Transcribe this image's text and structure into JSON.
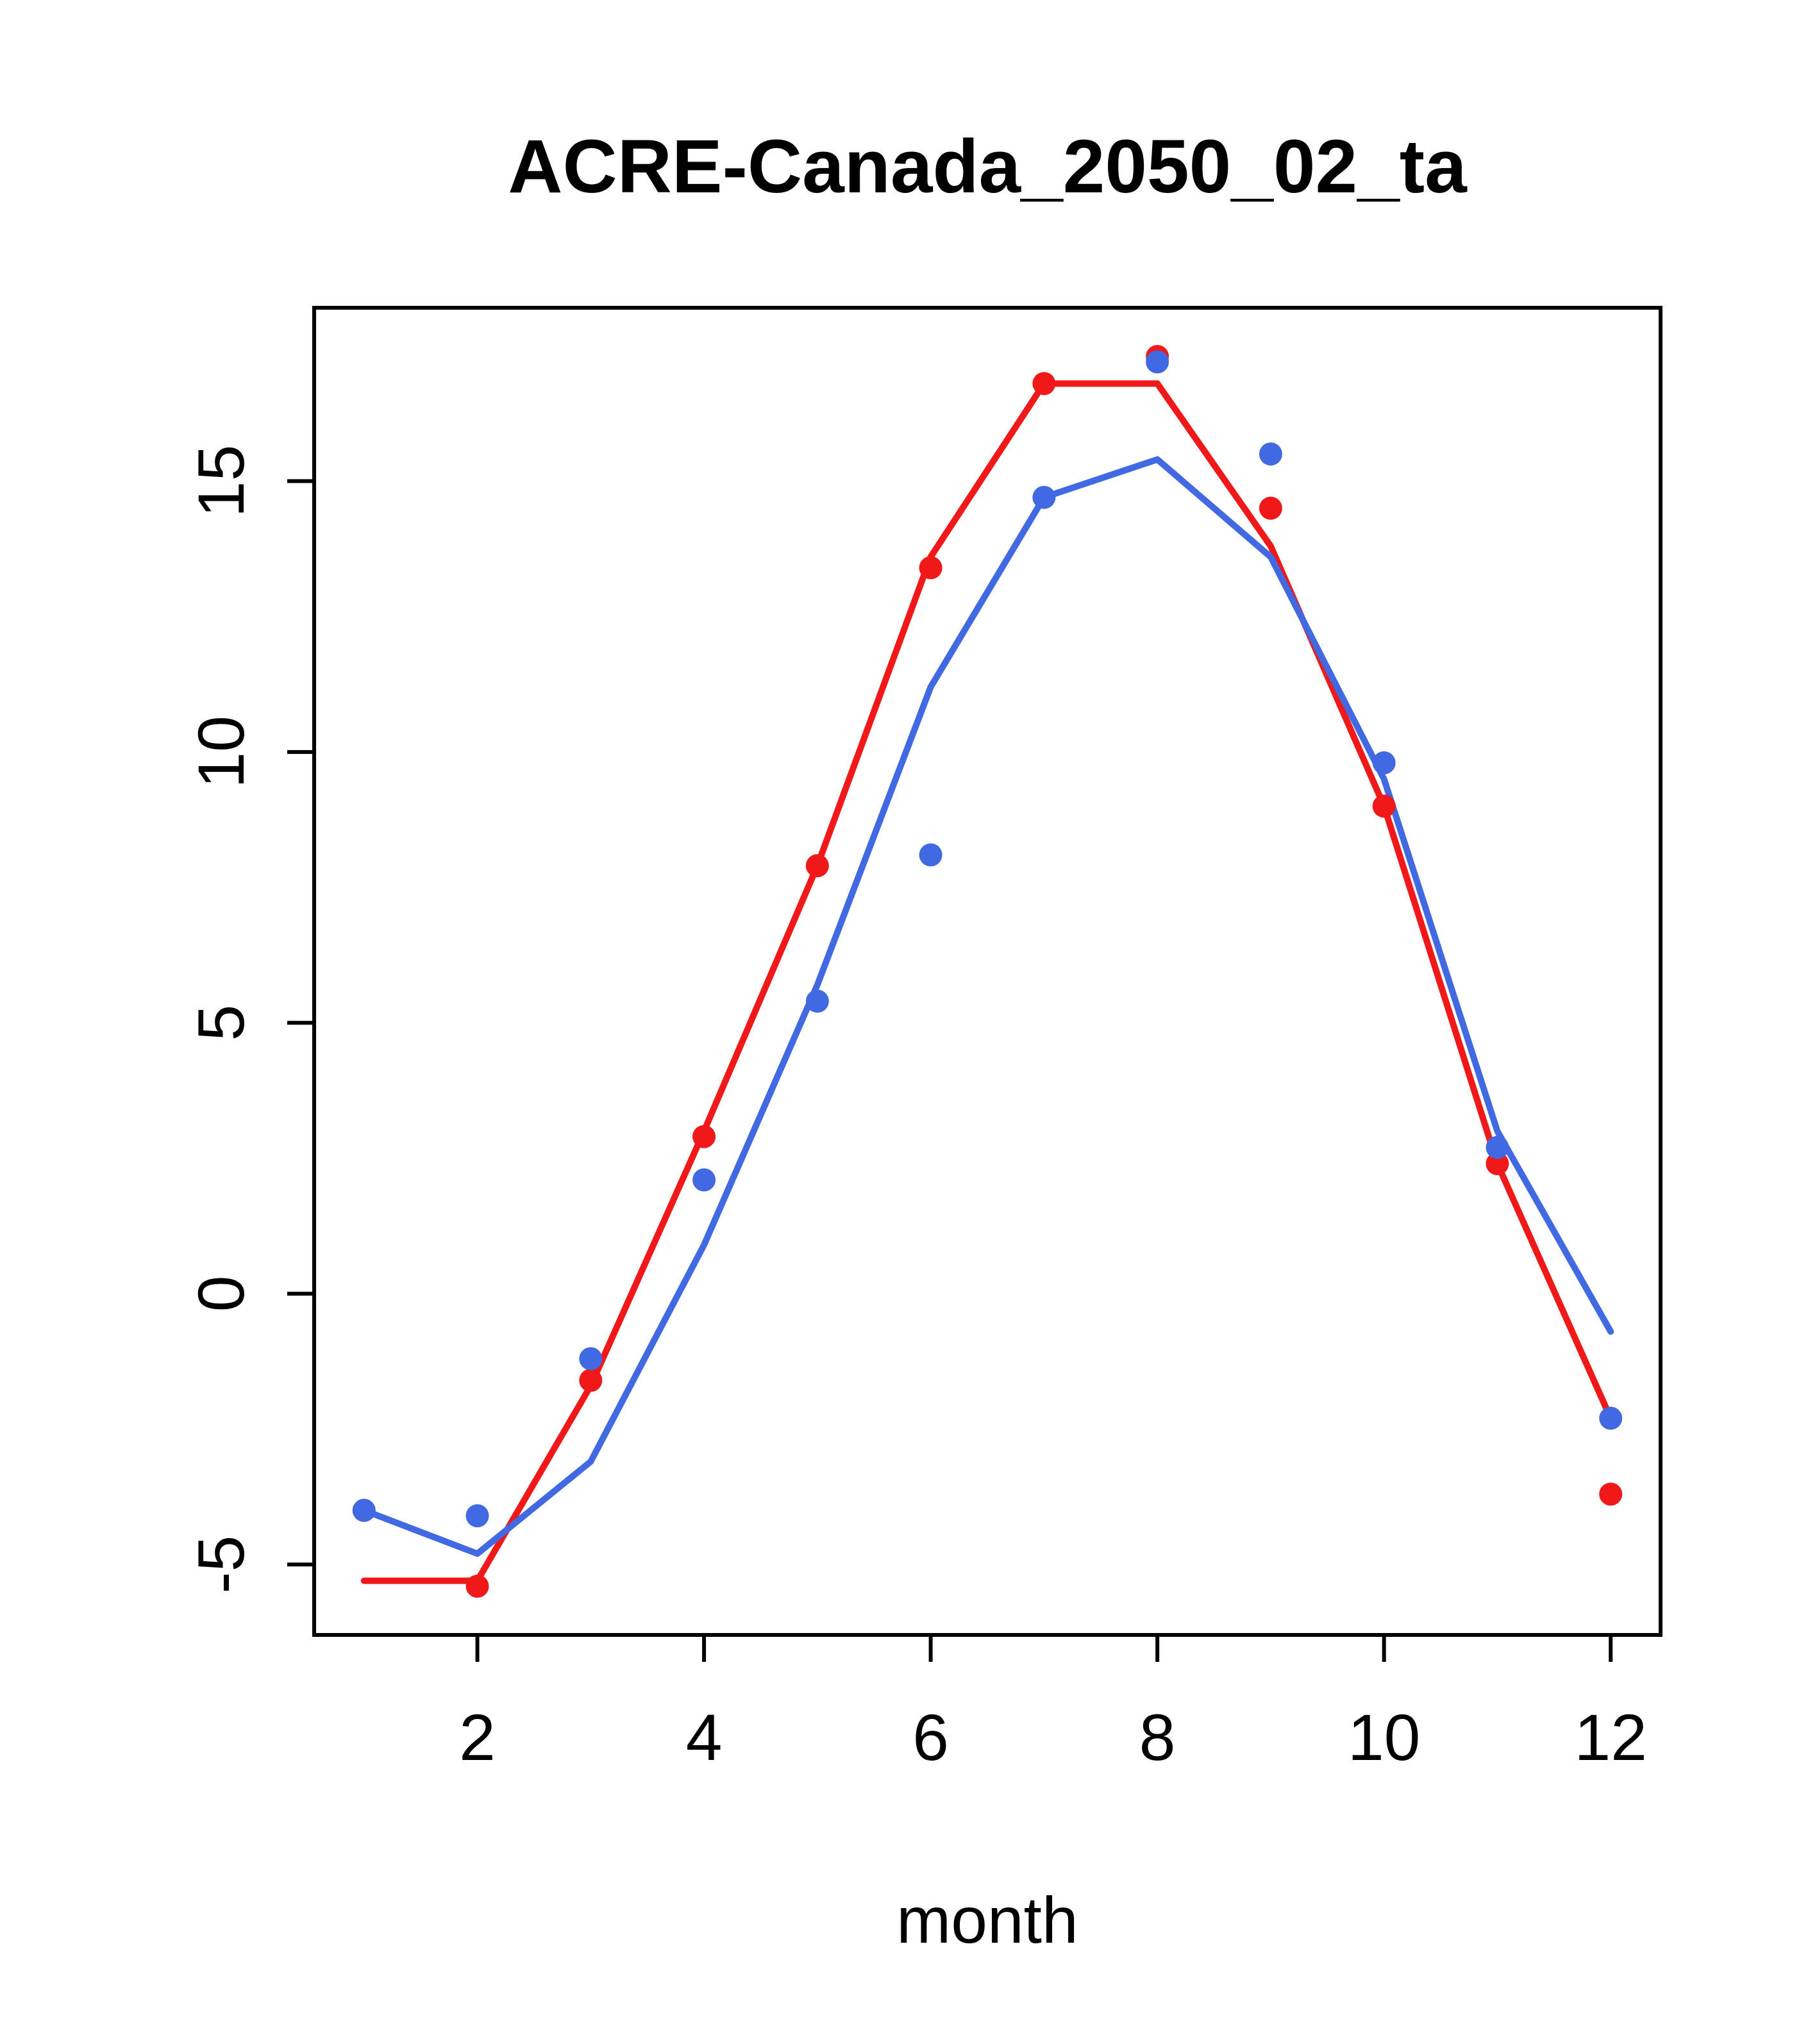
{
  "chart_data": {
    "type": "line",
    "title": "ACRE-Canada_2050_02_ta",
    "xlabel": "month",
    "ylabel": "",
    "x": [
      1,
      2,
      3,
      4,
      5,
      6,
      7,
      8,
      9,
      10,
      11,
      12
    ],
    "xlim": [
      0.56,
      12.44
    ],
    "ylim": [
      -6.3,
      18.2
    ],
    "xticks": [
      2,
      4,
      6,
      8,
      10,
      12
    ],
    "yticks": [
      -5,
      0,
      5,
      10,
      15
    ],
    "grid": false,
    "legend": "none",
    "colors": {
      "red": "#F01818",
      "blue": "#4169E1",
      "axis": "#000000",
      "background": "#FFFFFF"
    },
    "series": [
      {
        "name": "red-line",
        "kind": "line",
        "color": "#F01818",
        "values": [
          -5.3,
          -5.3,
          -1.7,
          3.0,
          7.9,
          13.6,
          16.8,
          16.8,
          13.8,
          9.0,
          2.4,
          -2.3
        ]
      },
      {
        "name": "blue-line",
        "kind": "line",
        "color": "#4169E1",
        "values": [
          -4.0,
          -4.8,
          -3.1,
          0.9,
          5.7,
          11.2,
          14.7,
          15.4,
          13.6,
          9.5,
          3.0,
          -0.7
        ]
      },
      {
        "name": "red-points",
        "kind": "points",
        "color": "#F01818",
        "values": [
          -4.0,
          -5.4,
          -1.6,
          2.9,
          7.9,
          13.4,
          16.8,
          17.3,
          14.5,
          9.0,
          2.4,
          -3.7
        ]
      },
      {
        "name": "blue-points",
        "kind": "points",
        "color": "#4169E1",
        "values": [
          -4.0,
          -4.1,
          -1.2,
          2.1,
          5.4,
          8.1,
          14.7,
          17.2,
          15.5,
          9.8,
          2.7,
          -2.3
        ]
      }
    ]
  }
}
